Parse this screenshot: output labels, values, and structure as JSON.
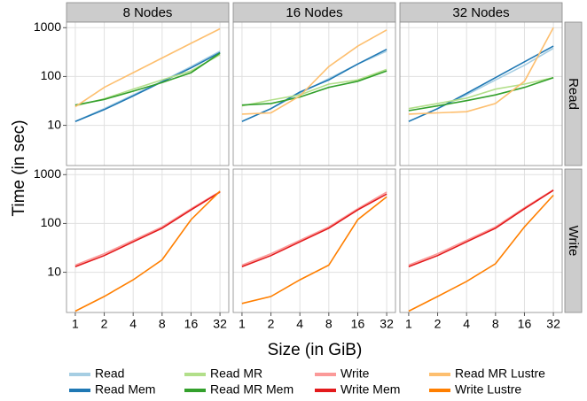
{
  "chart_data": {
    "type": "line",
    "xlabel": "Size (in GiB)",
    "ylabel": "Time (in sec)",
    "x": [
      1,
      2,
      4,
      8,
      16,
      32
    ],
    "xlim": [
      0.81,
      39.5
    ],
    "xticks": [
      1,
      2,
      4,
      8,
      16,
      32
    ],
    "xscale": "log",
    "ylim": [
      1.5,
      1300
    ],
    "yticks": [
      10,
      100,
      1000
    ],
    "yscale": "log",
    "grid": true,
    "legend": "bottom",
    "columns": [
      "8 Nodes",
      "16 Nodes",
      "32 Nodes"
    ],
    "rows": [
      {
        "label": "Read",
        "series": [
          {
            "name": "Read",
            "color": "#a6cee3",
            "values": [
              [
                12,
                22,
                42,
                80,
                160,
                330
              ],
              [
                12,
                22,
                45,
                90,
                180,
                330
              ],
              [
                12,
                22,
                42,
                85,
                170,
                380
              ]
            ]
          },
          {
            "name": "Read Mem",
            "color": "#1f78b4",
            "values": [
              [
                12,
                21,
                40,
                78,
                150,
                310
              ],
              [
                12,
                22,
                48,
                85,
                180,
                360
              ],
              [
                12,
                22,
                45,
                95,
                200,
                420
              ]
            ]
          },
          {
            "name": "Read MR",
            "color": "#b2df8a",
            "values": [
              [
                25,
                35,
                55,
                85,
                130,
                280
              ],
              [
                25,
                33,
                42,
                70,
                85,
                140
              ],
              [
                22,
                28,
                36,
                55,
                70,
                95
              ]
            ]
          },
          {
            "name": "Read MR Mem",
            "color": "#33a02c",
            "values": [
              [
                26,
                34,
                50,
                75,
                120,
                300
              ],
              [
                26,
                28,
                38,
                60,
                80,
                130
              ],
              [
                20,
                25,
                32,
                42,
                60,
                95
              ]
            ]
          },
          {
            "name": "Read MR Lustre",
            "color": "#fdbf6f",
            "values": [
              [
                24,
                60,
                120,
                240,
                480,
                950
              ],
              [
                17,
                18,
                40,
                160,
                420,
                900
              ],
              [
                17,
                18,
                19,
                28,
                80,
                1000
              ]
            ]
          }
        ]
      },
      {
        "label": "Write",
        "series": [
          {
            "name": "Write",
            "color": "#fb9a99",
            "values": [
              [
                14,
                24,
                45,
                85,
                200,
                450
              ],
              [
                14,
                24,
                45,
                85,
                200,
                440
              ],
              [
                14,
                24,
                45,
                85,
                210,
                490
              ]
            ]
          },
          {
            "name": "Write Mem",
            "color": "#e31a1c",
            "values": [
              [
                13,
                22,
                42,
                80,
                190,
                440
              ],
              [
                13,
                22,
                42,
                80,
                190,
                400
              ],
              [
                13,
                22,
                42,
                80,
                200,
                480
              ]
            ]
          },
          {
            "name": "Write Lustre",
            "color": "#ff7f00",
            "values": [
              [
                1.6,
                3.2,
                7,
                18,
                120,
                460
              ],
              [
                2.3,
                3.2,
                7,
                14,
                120,
                350
              ],
              [
                1.6,
                3.2,
                6.5,
                15,
                85,
                380
              ]
            ]
          }
        ]
      }
    ]
  }
}
